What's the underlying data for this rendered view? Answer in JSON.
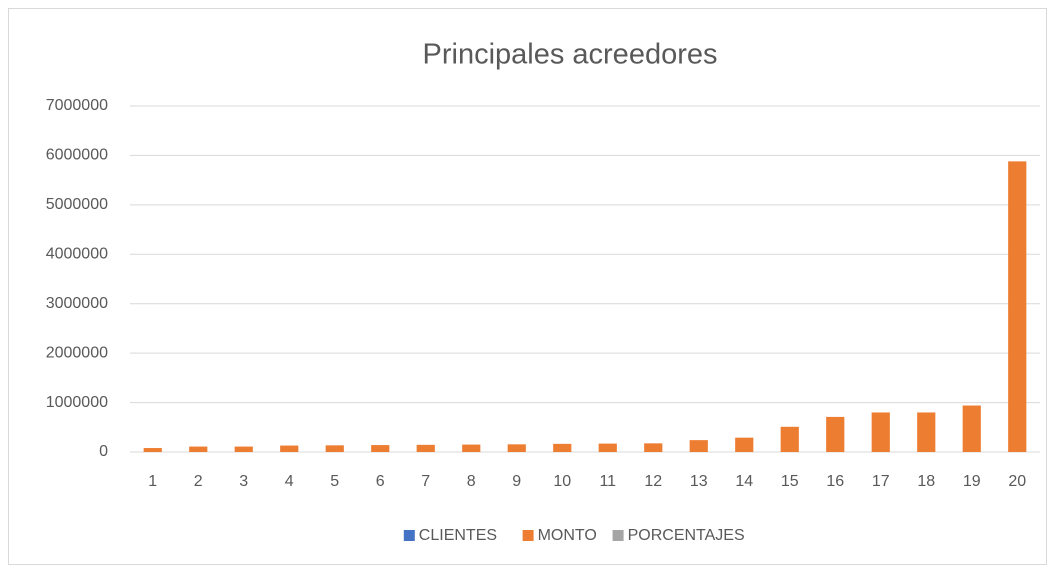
{
  "chart_data": {
    "type": "bar",
    "title": "Principales acreedores",
    "categories": [
      "1",
      "2",
      "3",
      "4",
      "5",
      "6",
      "7",
      "8",
      "9",
      "10",
      "11",
      "12",
      "13",
      "14",
      "15",
      "16",
      "17",
      "18",
      "19",
      "20"
    ],
    "series": [
      {
        "name": "CLIENTES",
        "color": "#4472c4",
        "values": [
          null,
          null,
          null,
          null,
          null,
          null,
          null,
          null,
          null,
          null,
          null,
          null,
          null,
          null,
          null,
          null,
          null,
          null,
          null,
          null
        ]
      },
      {
        "name": "MONTO",
        "color": "#ed7d31",
        "values": [
          80000,
          110000,
          110000,
          130000,
          135000,
          140000,
          145000,
          150000,
          155000,
          165000,
          170000,
          175000,
          240000,
          290000,
          510000,
          710000,
          800000,
          800000,
          940000,
          5880000
        ]
      },
      {
        "name": "PORCENTAJES",
        "color": "#a5a5a5",
        "values": [
          null,
          null,
          null,
          null,
          null,
          null,
          null,
          null,
          null,
          null,
          null,
          null,
          null,
          null,
          null,
          null,
          null,
          null,
          null,
          null
        ]
      }
    ],
    "ylim": [
      0,
      7000000
    ],
    "yticks": [
      0,
      1000000,
      2000000,
      3000000,
      4000000,
      5000000,
      6000000,
      7000000
    ],
    "grid": true,
    "legend": "bottom"
  }
}
